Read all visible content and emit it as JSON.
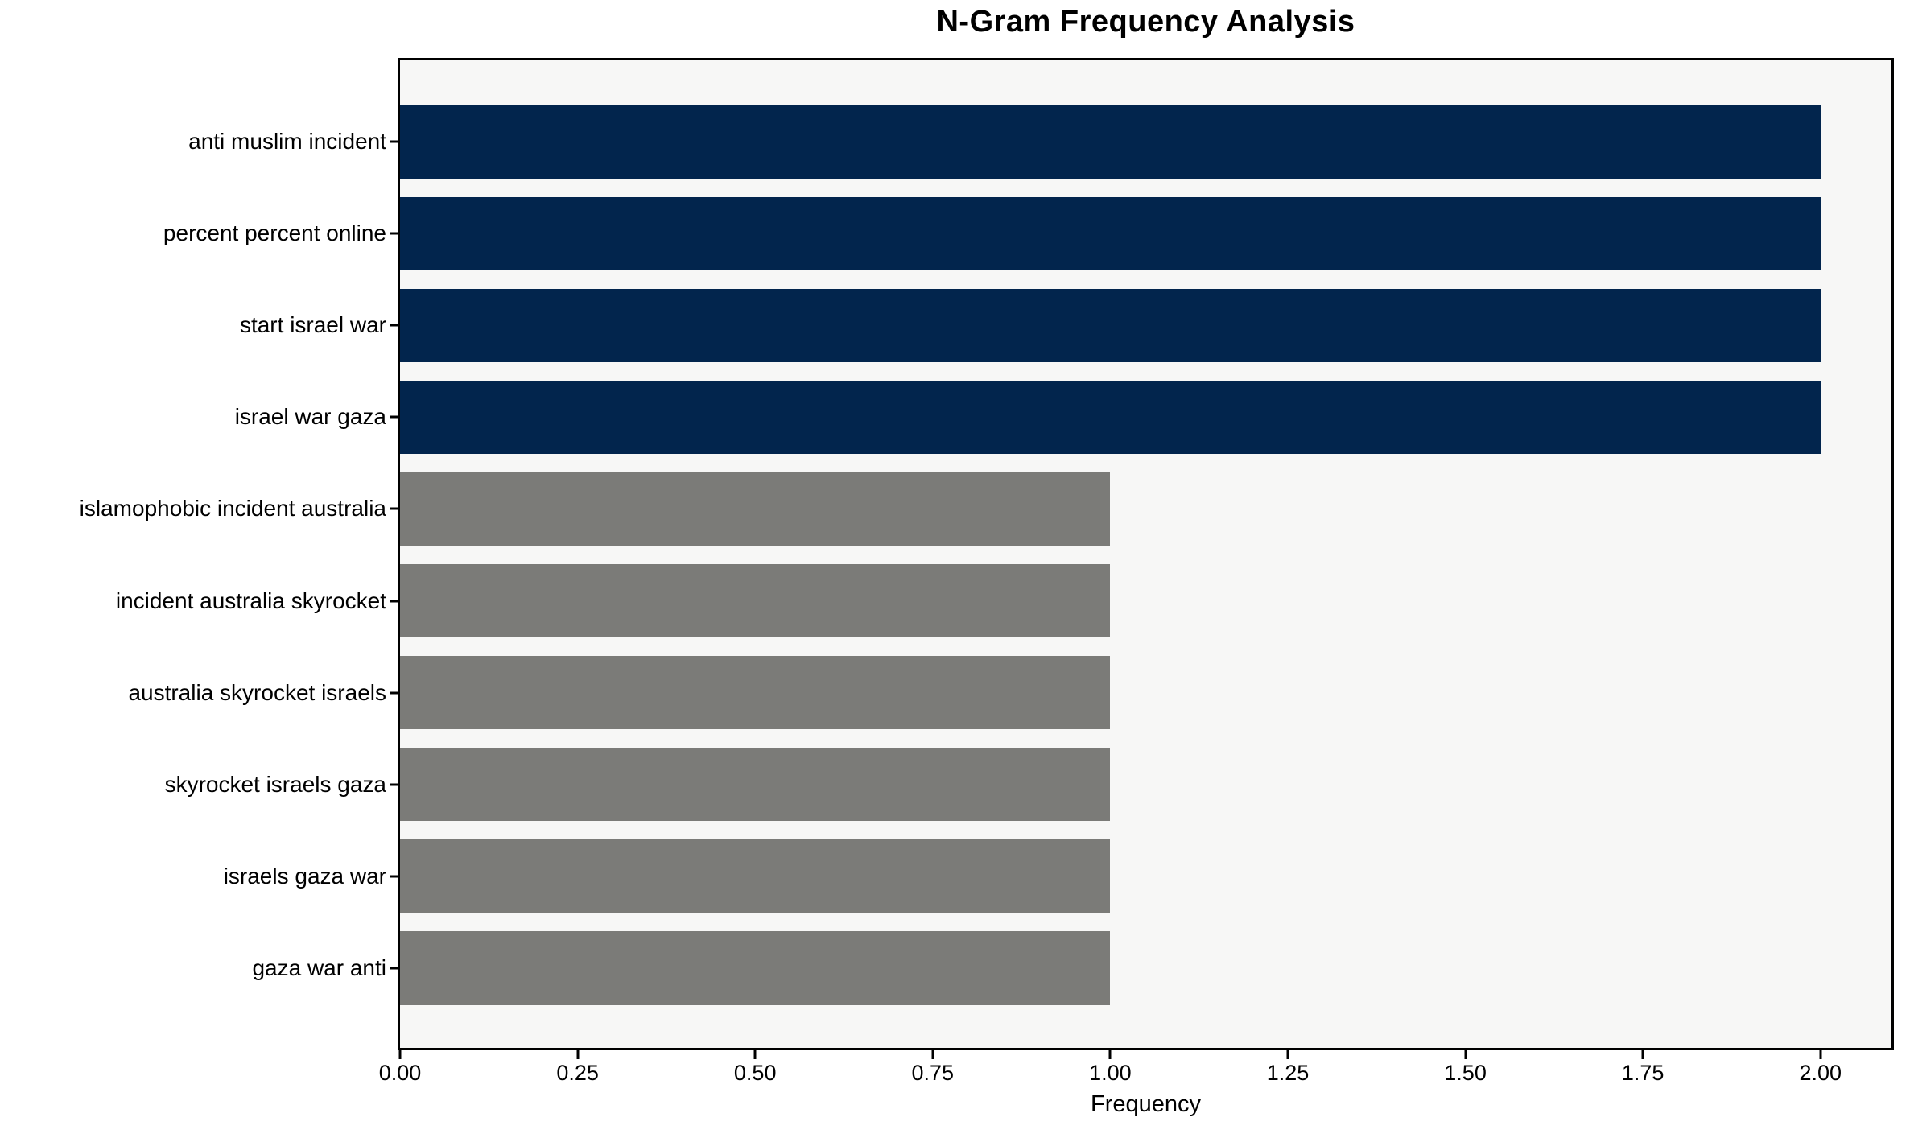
{
  "chart_data": {
    "type": "bar",
    "orientation": "horizontal",
    "title": "N-Gram Frequency Analysis",
    "xlabel": "Frequency",
    "ylabel": "",
    "categories": [
      "anti muslim incident",
      "percent percent online",
      "start israel war",
      "israel war gaza",
      "islamophobic incident australia",
      "incident australia skyrocket",
      "australia skyrocket israels",
      "skyrocket israels gaza",
      "israels gaza war",
      "gaza war anti"
    ],
    "values": [
      2,
      2,
      2,
      2,
      1,
      1,
      1,
      1,
      1,
      1
    ],
    "bar_colors": [
      "#02254d",
      "#02254d",
      "#02254d",
      "#02254d",
      "#7b7b78",
      "#7b7b78",
      "#7b7b78",
      "#7b7b78",
      "#7b7b78",
      "#7b7b78"
    ],
    "xticks": [
      "0.00",
      "0.25",
      "0.50",
      "0.75",
      "1.00",
      "1.25",
      "1.50",
      "1.75",
      "2.00"
    ],
    "xlim": [
      0,
      2.1
    ],
    "grid": false,
    "legend_position": "none",
    "colors": {
      "highlight_bar": "#02254d",
      "default_bar": "#7b7b78",
      "plot_background": "#f7f7f6",
      "figure_background": "#ffffff",
      "spine": "#000000",
      "text": "#000000"
    }
  }
}
